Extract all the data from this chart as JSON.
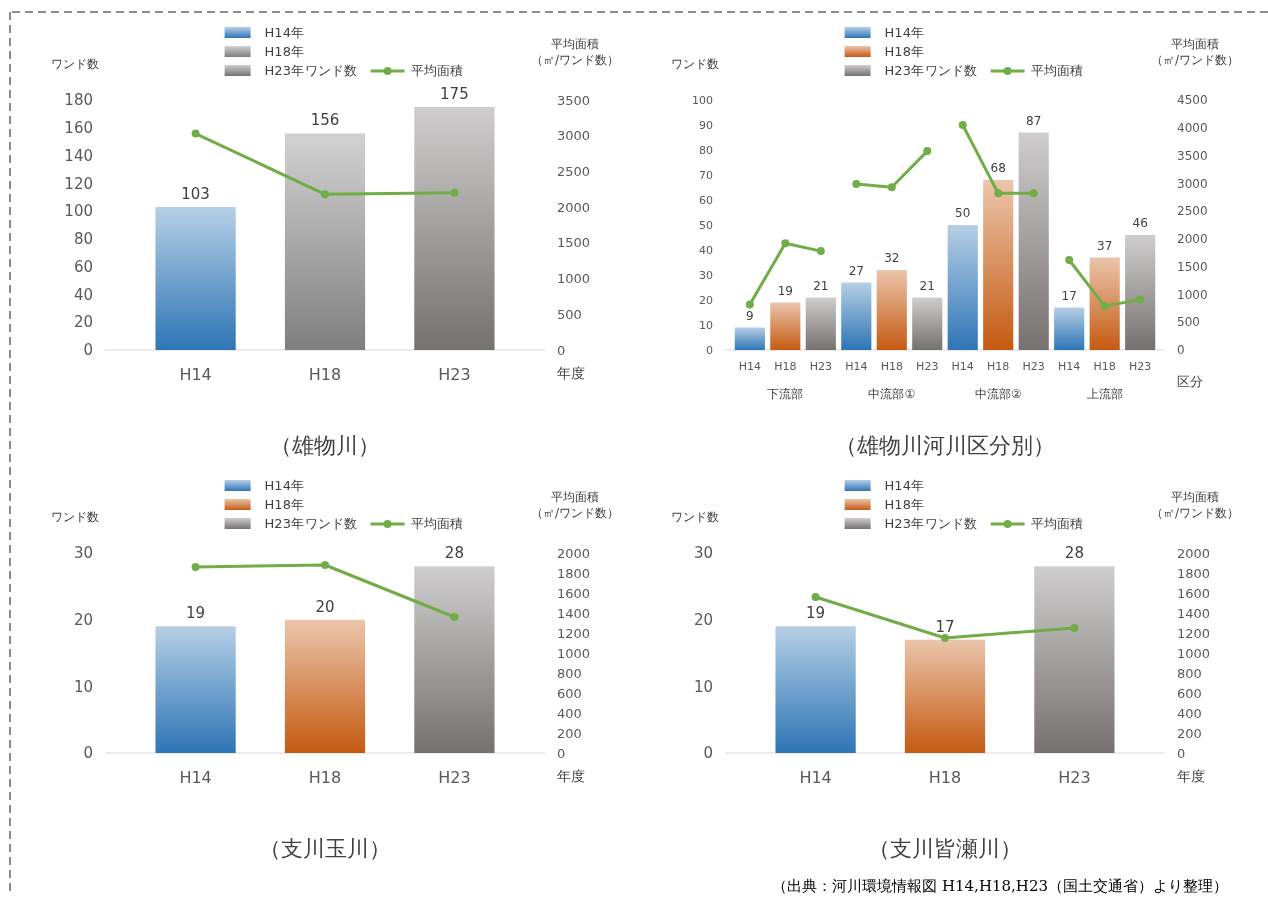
{
  "chart_data": [
    {
      "type": "bar",
      "title": "（雄物川）",
      "xlabel": "年度",
      "ylabel": "ワンド数",
      "y2label": "平均面積（㎡/ワンド数）",
      "legend_title": "ワンド数",
      "legend": "top",
      "marker": "circle",
      "categories": [
        "H14",
        "H18",
        "H23"
      ],
      "ylim": [
        0,
        180
      ],
      "yticks": [
        0,
        20,
        40,
        60,
        80,
        100,
        120,
        140,
        160,
        180
      ],
      "y2lim": [
        0,
        3500
      ],
      "y2ticks": [
        0,
        500,
        1000,
        1500,
        2000,
        2500,
        3000,
        3500
      ],
      "series": [
        {
          "name": "H14年",
          "color": "#2e75b6",
          "values": [
            103,
            null,
            null
          ],
          "value_labels": [
            "103",
            null,
            null
          ]
        },
        {
          "name": "H18年",
          "color": "#7f7f7f",
          "values": [
            null,
            156,
            null
          ],
          "value_labels": [
            null,
            "156",
            null
          ]
        },
        {
          "name": "H23年",
          "color": "#767171",
          "values": [
            null,
            null,
            175
          ],
          "value_labels": [
            null,
            null,
            "175"
          ]
        },
        {
          "name": "平均面積",
          "type": "line",
          "axis": "y2",
          "color": "#70ad47",
          "values": [
            3030,
            2180,
            2200
          ]
        }
      ]
    },
    {
      "type": "bar",
      "title": "（雄物川河川区分別）",
      "xlabel": "区分",
      "ylabel": "ワンド数",
      "y2label": "平均面積（㎡/ワンド数）",
      "legend_title": "ワンド数",
      "legend": "top",
      "marker": "circle",
      "categories": [
        "H14",
        "H18",
        "H23",
        "H14",
        "H18",
        "H23",
        "H14",
        "H18",
        "H23",
        "H14",
        "H18",
        "H23"
      ],
      "annotations": [
        "下流部",
        "中流部①",
        "中流部②",
        "上流部"
      ],
      "ylim": [
        0,
        100
      ],
      "yticks": [
        0,
        10,
        20,
        30,
        40,
        50,
        60,
        70,
        80,
        90,
        100
      ],
      "y2lim": [
        0,
        4500
      ],
      "y2ticks": [
        0,
        500,
        1000,
        1500,
        2000,
        2500,
        3000,
        3500,
        4000,
        4500
      ],
      "series": [
        {
          "name": "H14年",
          "color": "#2e75b6",
          "values": [
            9,
            null,
            null,
            27,
            null,
            null,
            50,
            null,
            null,
            17,
            null,
            null
          ],
          "value_labels": [
            "9",
            null,
            null,
            "27",
            null,
            null,
            "50",
            null,
            null,
            "17",
            null,
            null
          ]
        },
        {
          "name": "H18年",
          "color": "#c55a11",
          "values": [
            null,
            19,
            null,
            null,
            32,
            null,
            null,
            68,
            null,
            null,
            37,
            null
          ],
          "value_labels": [
            null,
            "19",
            null,
            null,
            "32",
            null,
            null,
            "68",
            null,
            null,
            "37",
            null
          ]
        },
        {
          "name": "H23年",
          "color": "#767171",
          "values": [
            null,
            null,
            21,
            null,
            null,
            21,
            null,
            null,
            87,
            null,
            null,
            46
          ],
          "value_labels": [
            null,
            null,
            "21",
            null,
            null,
            "21",
            null,
            null,
            "87",
            null,
            null,
            "46"
          ]
        },
        {
          "name": "平均面積",
          "type": "line",
          "axis": "y2",
          "color": "#70ad47",
          "values": [
            820,
            1920,
            1780,
            null,
            null,
            null,
            null,
            null,
            null,
            null,
            null,
            null
          ]
        },
        {
          "type": "line",
          "axis": "y2",
          "color": "#70ad47",
          "values": [
            null,
            null,
            null,
            2990,
            2930,
            3580,
            null,
            null,
            null,
            null,
            null,
            null
          ]
        },
        {
          "type": "line",
          "axis": "y2",
          "color": "#70ad47",
          "values": [
            null,
            null,
            null,
            null,
            null,
            null,
            4050,
            2820,
            2820,
            null,
            null,
            null
          ]
        },
        {
          "type": "line",
          "axis": "y2",
          "color": "#70ad47",
          "values": [
            null,
            null,
            null,
            null,
            null,
            null,
            null,
            null,
            null,
            1620,
            790,
            910
          ]
        }
      ]
    },
    {
      "type": "bar",
      "title": "（支川玉川）",
      "xlabel": "年度",
      "ylabel": "ワンド数",
      "y2label": "平均面積（㎡/ワンド数）",
      "legend_title": "ワンド数",
      "legend": "top",
      "marker": "circle",
      "categories": [
        "H14",
        "H18",
        "H23"
      ],
      "ylim": [
        0,
        30
      ],
      "yticks": [
        0,
        10,
        20,
        30
      ],
      "y2lim": [
        0,
        2000
      ],
      "y2ticks": [
        0,
        200,
        400,
        600,
        800,
        1000,
        1200,
        1400,
        1600,
        1800,
        2000
      ],
      "series": [
        {
          "name": "H14年",
          "color": "#2e75b6",
          "values": [
            19,
            null,
            null
          ],
          "value_labels": [
            "19",
            null,
            null
          ]
        },
        {
          "name": "H18年",
          "color": "#c55a11",
          "values": [
            null,
            20,
            null
          ],
          "value_labels": [
            null,
            "20",
            null
          ]
        },
        {
          "name": "H23年",
          "color": "#767171",
          "values": [
            null,
            null,
            28
          ],
          "value_labels": [
            null,
            null,
            "28"
          ]
        },
        {
          "name": "平均面積",
          "type": "line",
          "axis": "y2",
          "color": "#70ad47",
          "values": [
            1860,
            1880,
            1360
          ]
        }
      ]
    },
    {
      "type": "bar",
      "title": "（支川皆瀬川）",
      "xlabel": "年度",
      "ylabel": "ワンド数",
      "y2label": "平均面積（㎡/ワンド数）",
      "legend_title": "ワンド数",
      "legend": "top",
      "marker": "circle",
      "categories": [
        "H14",
        "H18",
        "H23"
      ],
      "ylim": [
        0,
        30
      ],
      "yticks": [
        0,
        10,
        20,
        30
      ],
      "y2lim": [
        0,
        2000
      ],
      "y2ticks": [
        0,
        200,
        400,
        600,
        800,
        1000,
        1200,
        1400,
        1600,
        1800,
        2000
      ],
      "series": [
        {
          "name": "H14年",
          "color": "#2e75b6",
          "values": [
            19,
            null,
            null
          ],
          "value_labels": [
            "19",
            null,
            null
          ]
        },
        {
          "name": "H18年",
          "color": "#c55a11",
          "values": [
            null,
            17,
            null
          ],
          "value_labels": [
            null,
            "17",
            null
          ]
        },
        {
          "name": "H23年",
          "color": "#767171",
          "values": [
            null,
            null,
            28
          ],
          "value_labels": [
            null,
            null,
            "28"
          ]
        },
        {
          "name": "平均面積",
          "type": "line",
          "axis": "y2",
          "color": "#70ad47",
          "values": [
            1560,
            1150,
            1250
          ]
        }
      ]
    },
    {
      "type": "other",
      "annotations": [
        "（出典：河川環境情報図 H14,H18,H23（国土交通省）より整理）"
      ]
    }
  ]
}
